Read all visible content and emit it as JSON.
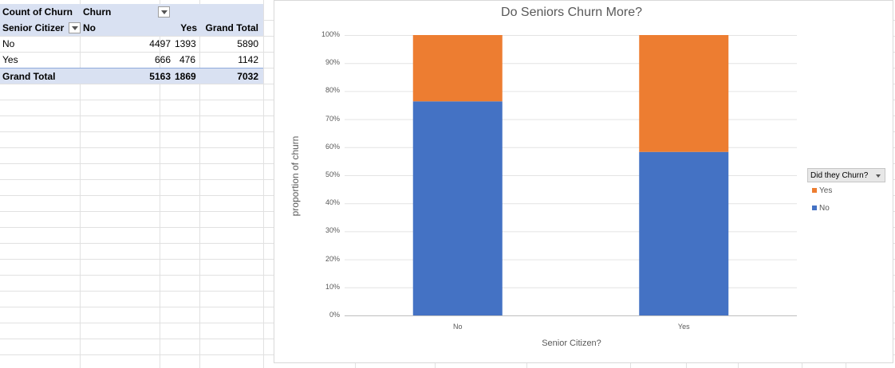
{
  "pivot": {
    "header": [
      "Count of Churn",
      "Churn"
    ],
    "row_label": "Senior Citizer",
    "columns": [
      "No",
      "Yes",
      "Grand Total"
    ],
    "rows": [
      {
        "label": "No",
        "no": "4497",
        "yes": "1393",
        "total": "5890"
      },
      {
        "label": "Yes",
        "no": "666",
        "yes": "476",
        "total": "1142"
      }
    ],
    "grand_total": {
      "label": "Grand Total",
      "no": "5163",
      "yes": "1869",
      "total": "7032"
    }
  },
  "chart": {
    "title": "Do Seniors Churn More?",
    "ylabel": "proportion of churn",
    "xlabel": "Senior Citizen?",
    "legend_title": "Did they Churn?",
    "legend_items": [
      "Yes",
      "No"
    ]
  },
  "colors": {
    "no": "#4472c4",
    "yes": "#ed7d31",
    "header_fill": "#d9e1f2"
  },
  "chart_data": {
    "type": "bar",
    "stacked": "percent",
    "title": "Do Seniors Churn More?",
    "xlabel": "Senior Citizen?",
    "ylabel": "proportion of churn",
    "categories": [
      "No",
      "Yes"
    ],
    "series": [
      {
        "name": "No",
        "values": [
          4497,
          666
        ]
      },
      {
        "name": "Yes",
        "values": [
          1393,
          476
        ]
      }
    ],
    "ylim": [
      0,
      100
    ],
    "yticks": [
      "0%",
      "10%",
      "20%",
      "30%",
      "40%",
      "50%",
      "60%",
      "70%",
      "80%",
      "90%",
      "100%"
    ],
    "grid": true,
    "legend": "right"
  }
}
